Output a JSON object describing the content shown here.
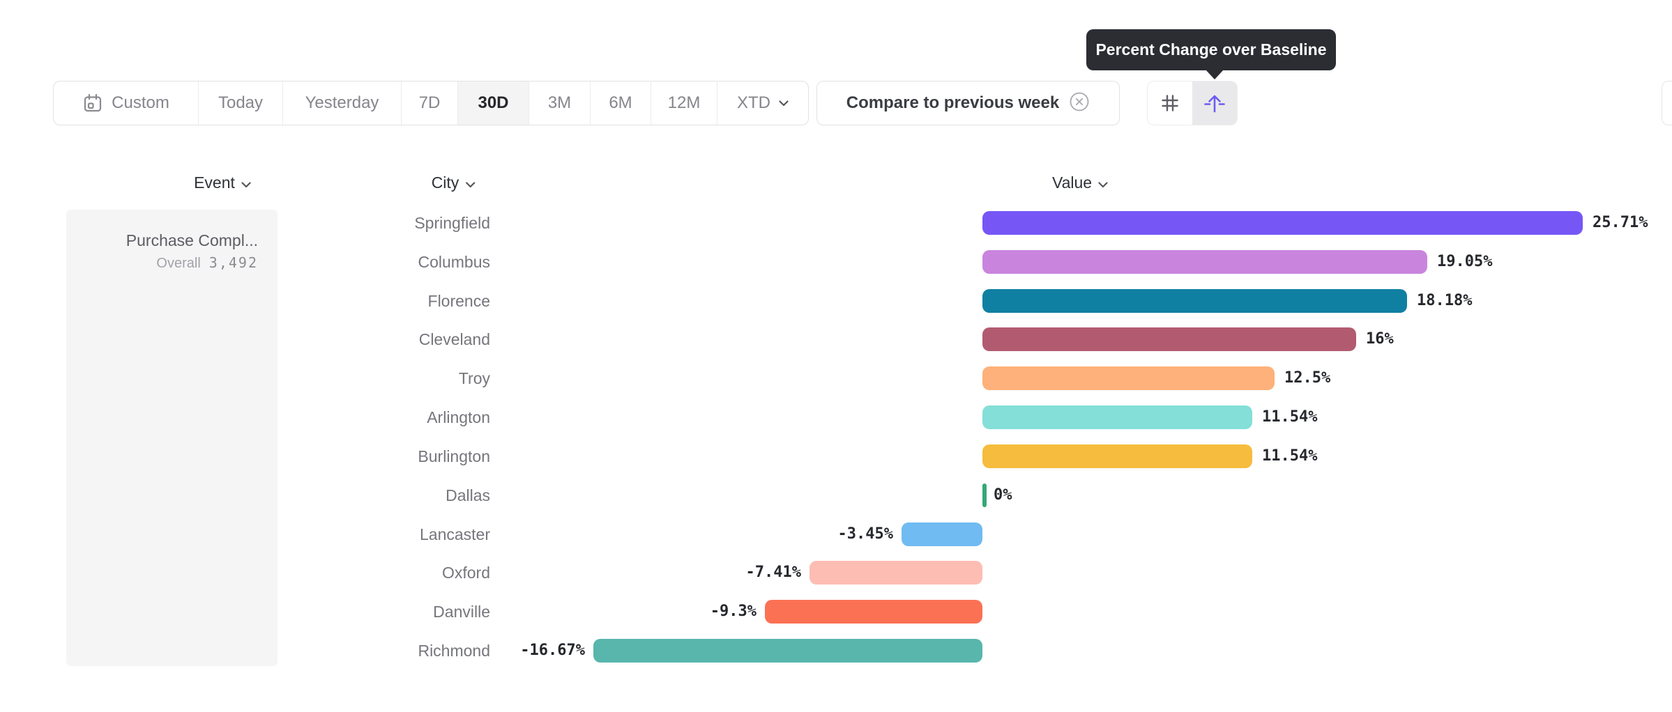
{
  "toolbar": {
    "date_ranges": [
      {
        "label": "Custom",
        "icon": "calendar-icon",
        "selected": false
      },
      {
        "label": "Today",
        "selected": false
      },
      {
        "label": "Yesterday",
        "selected": false
      },
      {
        "label": "7D",
        "selected": false
      },
      {
        "label": "30D",
        "selected": true
      },
      {
        "label": "3M",
        "selected": false
      },
      {
        "label": "6M",
        "selected": false
      },
      {
        "label": "12M",
        "selected": false
      },
      {
        "label": "XTD",
        "selected": false,
        "chevron": true
      }
    ],
    "compare_pill": {
      "label": "Compare to previous week",
      "close_icon": "circle-x-icon"
    },
    "view_toggle": [
      {
        "name": "absolute-values",
        "icon": "hash-icon",
        "selected": false
      },
      {
        "name": "percent-change-over-baseline",
        "icon": "baseline-arrow-icon",
        "selected": true
      }
    ]
  },
  "tooltip": {
    "text": "Percent Change over Baseline"
  },
  "table": {
    "headers": {
      "event": "Event",
      "city": "City",
      "value": "Value"
    }
  },
  "event_panel": {
    "event_name": "Purchase Compl...",
    "overall_label": "Overall",
    "overall_value": "3,492"
  },
  "chart_data": {
    "type": "bar",
    "orientation": "horizontal",
    "title": "",
    "xlabel": "Value",
    "ylabel": "City",
    "value_format": "percent change over baseline",
    "baseline": 0,
    "series_name": "Purchase Compl... (Overall 3,492)",
    "categories": [
      "Springfield",
      "Columbus",
      "Florence",
      "Cleveland",
      "Troy",
      "Arlington",
      "Burlington",
      "Dallas",
      "Lancaster",
      "Oxford",
      "Danville",
      "Richmond"
    ],
    "values": [
      25.71,
      19.05,
      18.18,
      16,
      12.5,
      11.54,
      11.54,
      0,
      -3.45,
      -7.41,
      -9.3,
      -16.67
    ],
    "value_labels": [
      "25.71%",
      "19.05%",
      "18.18%",
      "16%",
      "12.5%",
      "11.54%",
      "11.54%",
      "0%",
      "-3.45%",
      "-7.41%",
      "-9.3%",
      "-16.67%"
    ],
    "bar_colors": [
      "#7657f6",
      "#c985de",
      "#1080a2",
      "#b25b70",
      "#feb17a",
      "#83dfd8",
      "#f5bc3d",
      "#35a876",
      "#70bbf1",
      "#fdbdb3",
      "#fb7154",
      "#58b6ac"
    ]
  },
  "colors": {
    "accent_purple": "#6c5bf0",
    "tooltip_bg": "#2b2d33",
    "selected_segment_bg": "#f4f4f5",
    "event_panel_bg": "#f5f5f6",
    "zero_tick_green": "#35a876"
  }
}
